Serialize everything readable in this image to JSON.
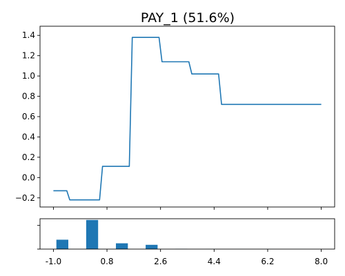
{
  "colors": {
    "series": "#1f77b4",
    "axes": "#000000",
    "background": "#ffffff"
  },
  "chart_data": [
    {
      "type": "line",
      "title": "PAY_1 (51.6%)",
      "xlabel": "",
      "ylabel": "",
      "xlim": [
        -1.45,
        8.45
      ],
      "ylim": [
        -0.29,
        1.49
      ],
      "grid": false,
      "yticks": [
        -0.2,
        0.0,
        0.2,
        0.4,
        0.6,
        0.8,
        1.0,
        1.2,
        1.4
      ],
      "ytick_labels": [
        "−0.2",
        "0.0",
        "0.2",
        "0.4",
        "0.6",
        "0.8",
        "1.0",
        "1.2",
        "1.4"
      ],
      "xticks": [
        -1.0,
        0.8,
        2.6,
        4.4,
        6.2,
        8.0
      ],
      "series": [
        {
          "x": [
            -1.0,
            -0.55,
            -0.45,
            0.55,
            0.65,
            1.55,
            1.65,
            2.55,
            2.65,
            3.55,
            3.65,
            4.55,
            4.65,
            8.0
          ],
          "y": [
            -0.13,
            -0.13,
            -0.22,
            -0.22,
            0.11,
            0.11,
            1.38,
            1.38,
            1.14,
            1.14,
            1.02,
            1.02,
            0.72,
            0.72
          ]
        }
      ]
    },
    {
      "type": "bar",
      "title": "",
      "xlabel": "",
      "ylabel": "",
      "xlim": [
        -1.45,
        8.45
      ],
      "ylim": [
        0,
        1.0
      ],
      "grid": false,
      "xticks": [
        -1.0,
        0.8,
        2.6,
        4.4,
        6.2,
        8.0
      ],
      "xtick_labels": [
        "-1.0",
        "0.8",
        "2.6",
        "4.4",
        "6.2",
        "8.0"
      ],
      "ytick_count": 2,
      "bar_width": 0.4,
      "x": [
        -0.7,
        0.3,
        1.3,
        2.3,
        3.3,
        4.3,
        5.3,
        6.3,
        7.3
      ],
      "values": [
        0.31,
        0.96,
        0.19,
        0.14,
        0.01,
        0.005,
        0.003,
        0.002,
        0.002
      ]
    }
  ]
}
